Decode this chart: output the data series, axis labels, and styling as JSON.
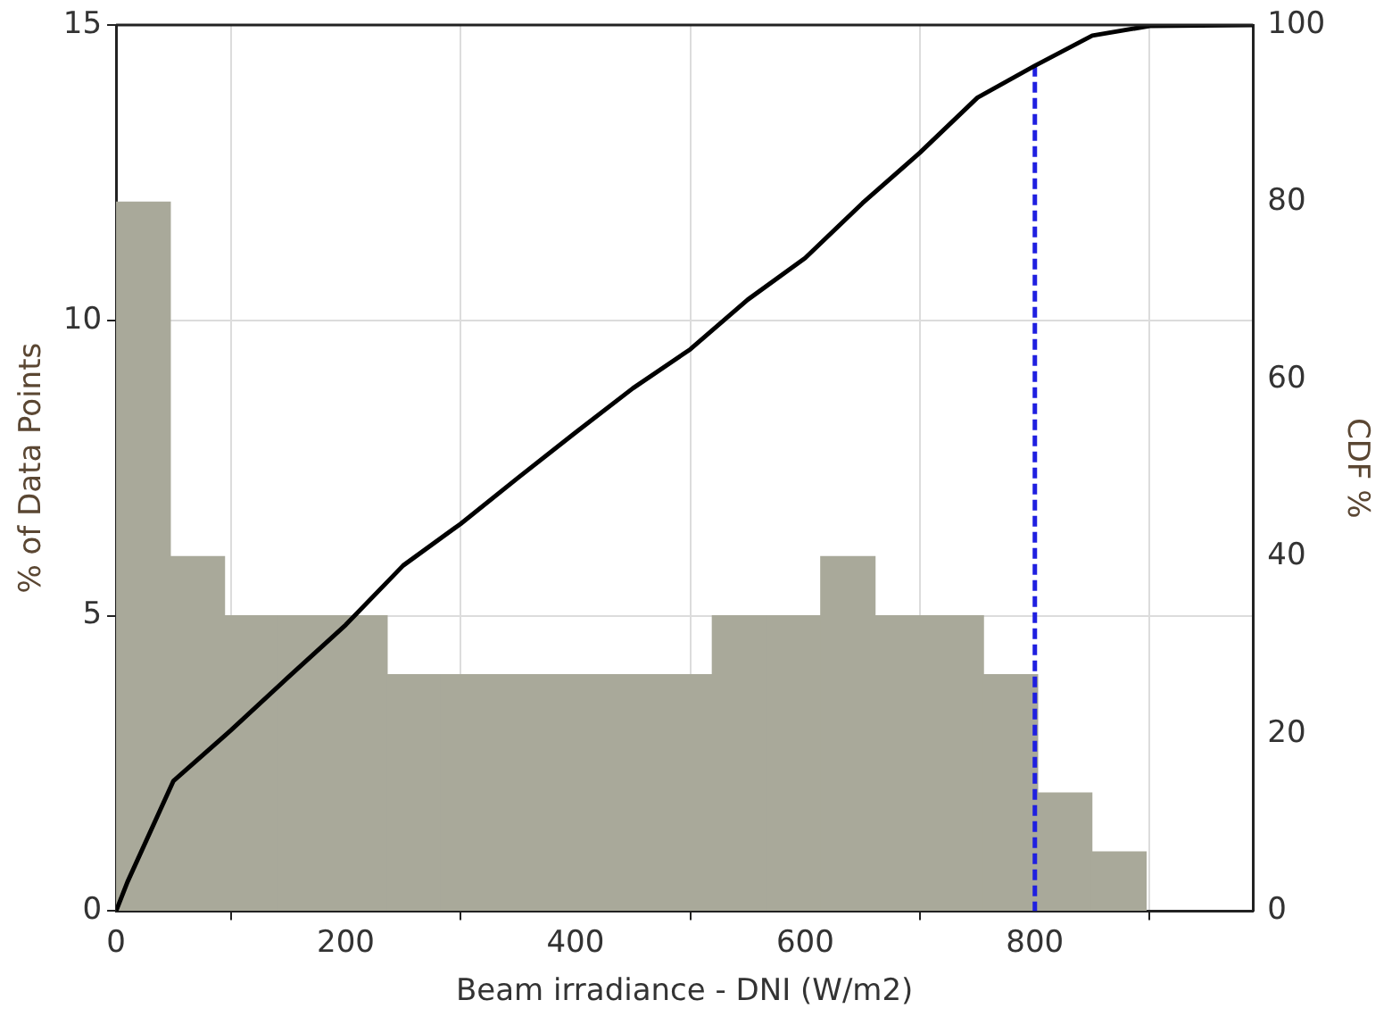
{
  "chart_data": {
    "type": "histogram",
    "xlabel": "Beam irradiance - DNI (W/m2)",
    "ylabel": "% of Data Points",
    "y2label": "CDF %",
    "bins": [
      0,
      47.2,
      94.4,
      141.6,
      188.8,
      236,
      283.2,
      330.4,
      377.6,
      424.8,
      472,
      519.2,
      566.4,
      613.6,
      660.8,
      708,
      755.2,
      802.4,
      849.6,
      896.8
    ],
    "values": [
      12,
      6,
      5,
      5,
      5,
      4,
      4,
      4,
      4,
      4,
      4,
      5,
      5,
      6,
      5,
      5,
      4,
      2,
      1
    ],
    "color": "#a9a99a",
    "series": [
      {
        "type": "line",
        "axis": "y2",
        "color": "#000000",
        "x": [
          0,
          10,
          50,
          100,
          150,
          200,
          250,
          300,
          350,
          400,
          450,
          500,
          550,
          600,
          650,
          700,
          750,
          800,
          850,
          900,
          990
        ],
        "values": [
          0,
          3.3,
          14.7,
          20.4,
          26.4,
          32.3,
          39,
          43.7,
          48.9,
          54,
          59,
          63.4,
          69,
          73.7,
          79.9,
          85.6,
          91.8,
          95.4,
          98.8,
          99.9,
          100
        ]
      },
      {
        "type": "line",
        "axis": "y2",
        "color": "#1f1fe0",
        "line_style": "dashed",
        "x": [
          800,
          800
        ],
        "values": [
          95.4,
          0
        ]
      }
    ],
    "xlim": [
      0,
      990
    ],
    "xticks": [
      0,
      200,
      400,
      600,
      800
    ],
    "ylim": [
      0,
      15
    ],
    "yticks": [
      0,
      5,
      10,
      15
    ],
    "y2lim": [
      0,
      100
    ],
    "y2ticks": [
      0,
      20,
      40,
      60,
      80,
      100
    ],
    "grid": true,
    "legend": false
  }
}
